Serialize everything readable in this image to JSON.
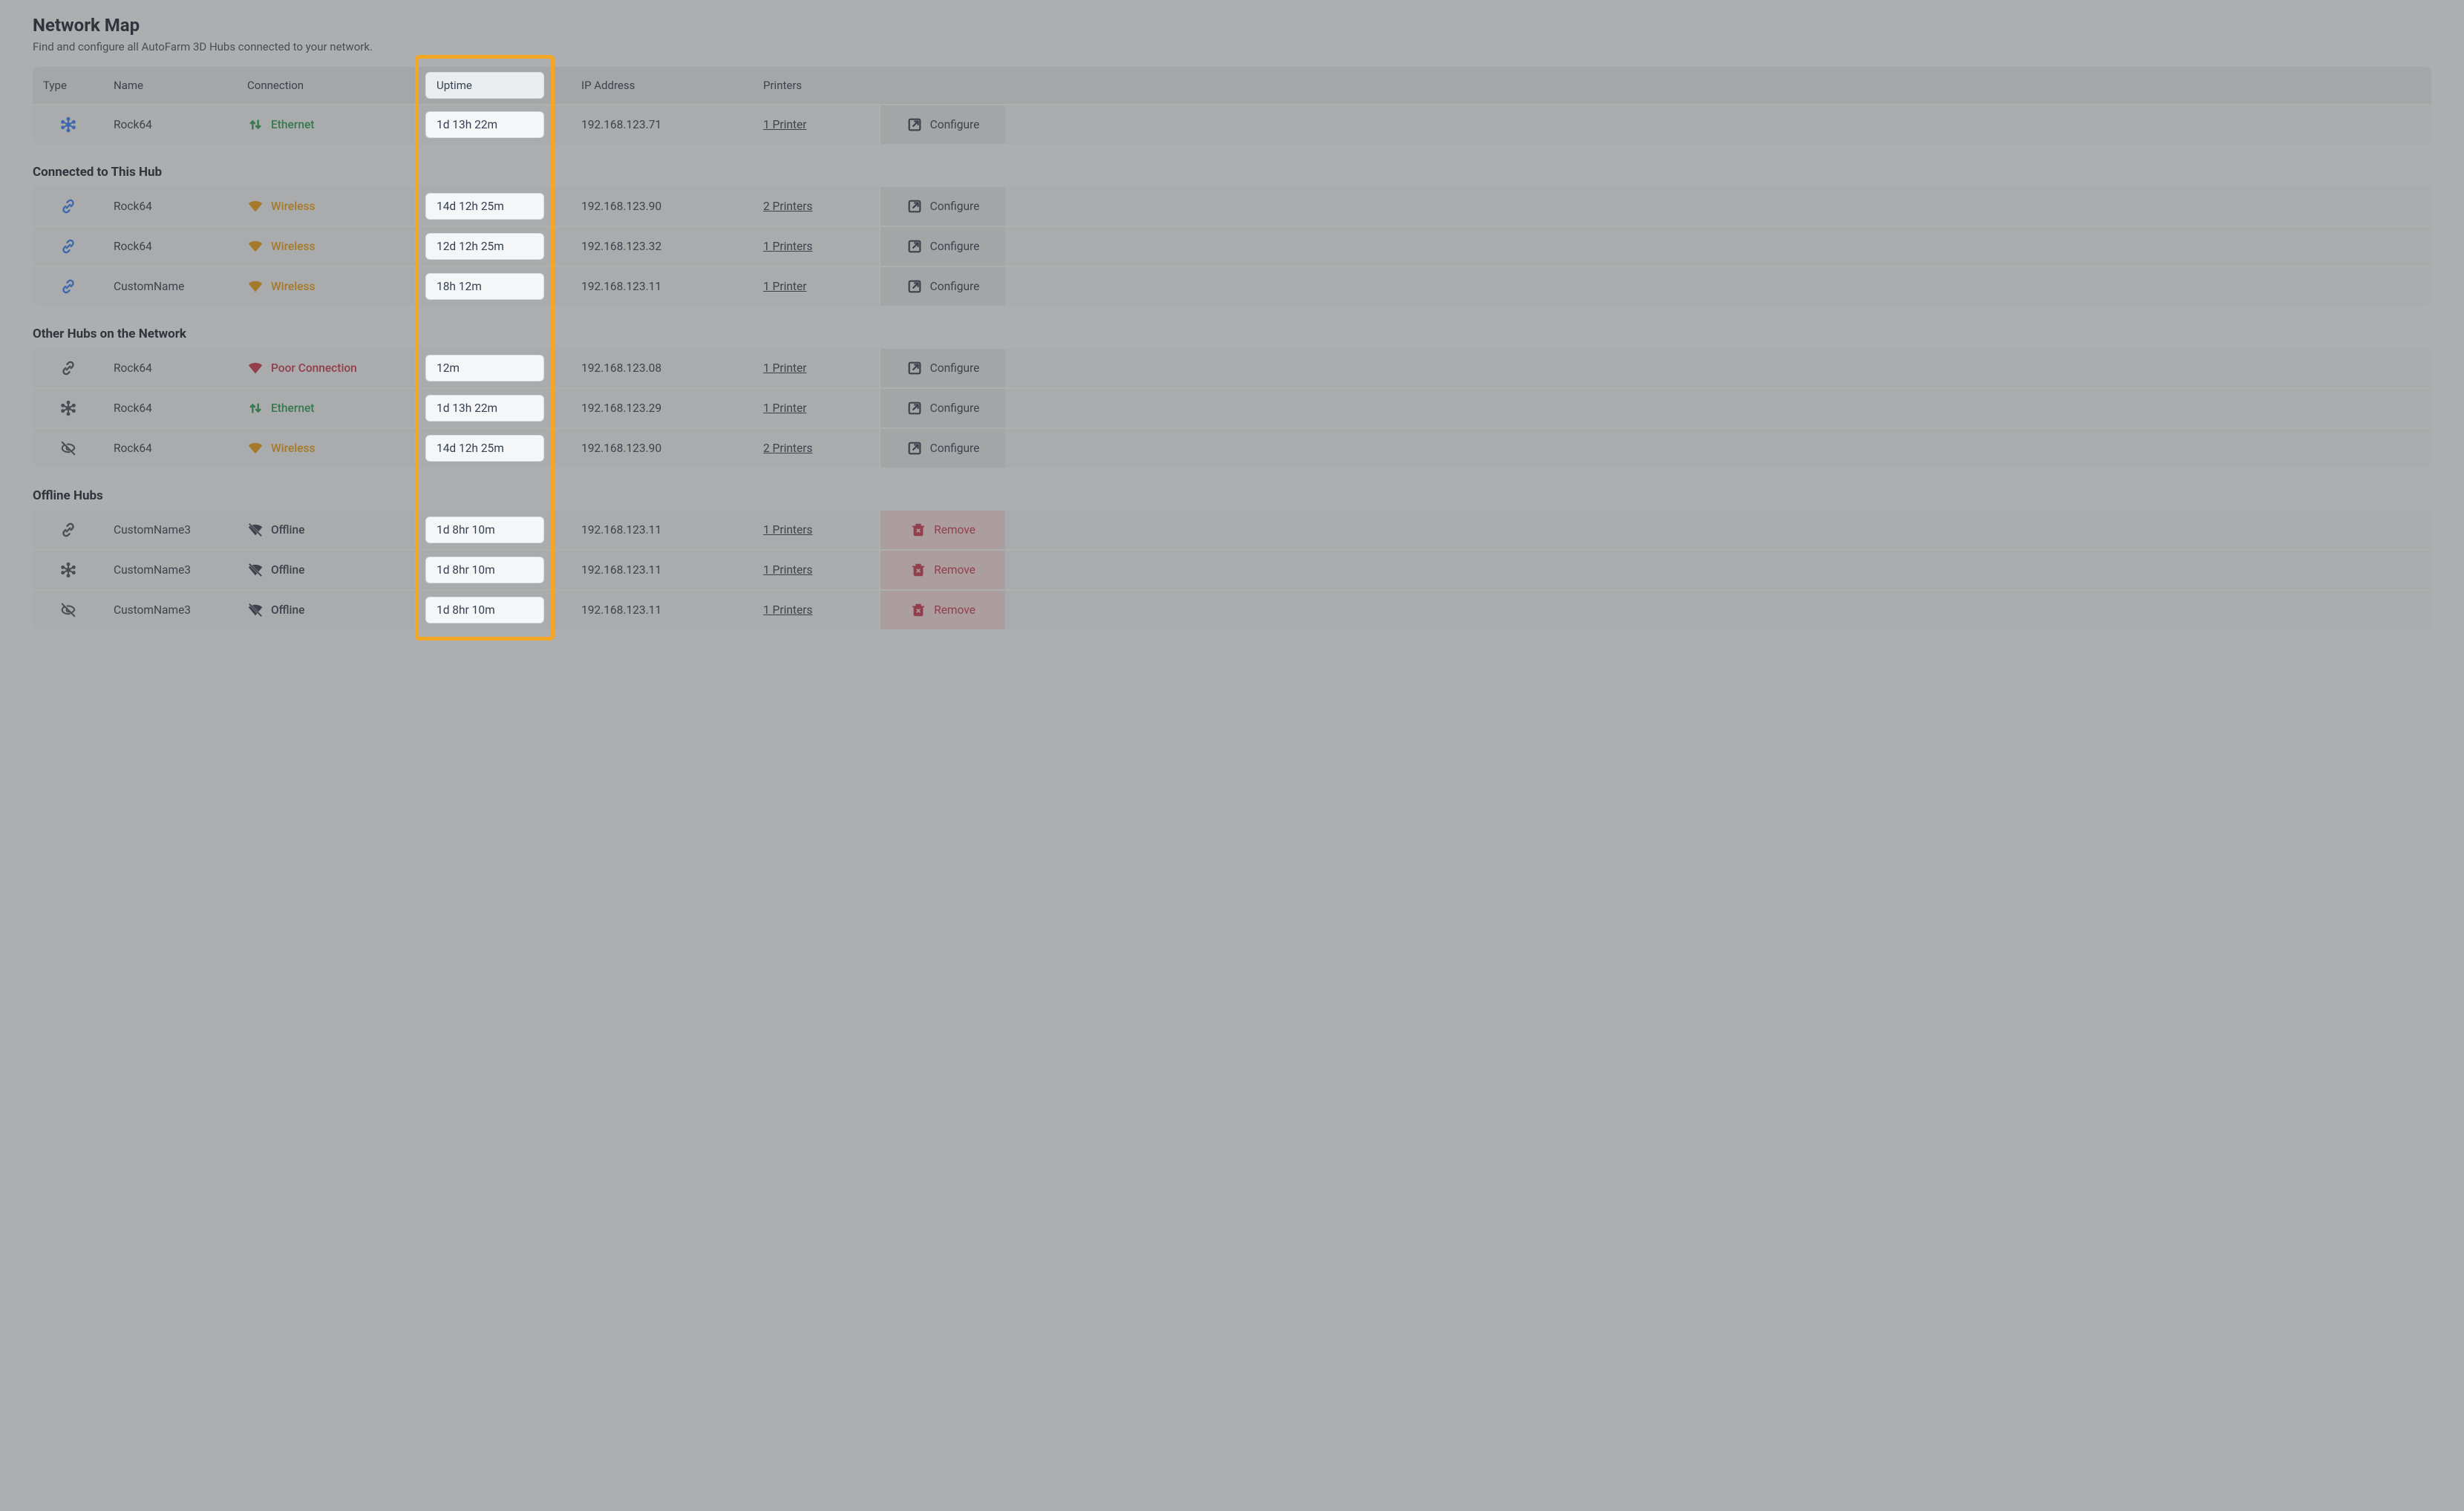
{
  "page": {
    "title": "Network Map",
    "subtitle": "Find and configure all AutoFarm 3D Hubs connected to your network."
  },
  "columns": {
    "type": "Type",
    "name": "Name",
    "connection": "Connection",
    "uptime": "Uptime",
    "ip": "IP Address",
    "printers": "Printers"
  },
  "actions": {
    "configure": "Configure",
    "remove": "Remove"
  },
  "sections": {
    "connected": "Connected to This Hub",
    "other": "Other Hubs on the Network",
    "offline": "Offline Hubs"
  },
  "connection_labels": {
    "ethernet": "Ethernet",
    "wireless": "Wireless",
    "poor": "Poor Connection",
    "offline": "Offline"
  },
  "colors": {
    "ethernet": "#2f9e56",
    "wireless": "#e8a117",
    "poor": "#ca3a52",
    "offline": "#374151",
    "type_icon": "#3b82f6",
    "type_icon_gray": "#4b5563",
    "highlight_border": "#f5a623",
    "overlay": "rgba(70,70,70,0.42)",
    "remove_bg": "#f7dde1",
    "remove_fg": "#ca3a52",
    "action_bg": "#e8ebee",
    "header_bg": "#e8ecef",
    "row_bg": "#f3f4f6"
  },
  "this_hub": {
    "type_icon": "hub",
    "name": "Rock64",
    "connection": "ethernet",
    "uptime": "1d 13h 22m",
    "ip": "192.168.123.71",
    "printers": "1 Printer",
    "action": "configure"
  },
  "connected_hubs": [
    {
      "type_icon": "link",
      "name": "Rock64",
      "connection": "wireless",
      "uptime": "14d 12h 25m",
      "ip": "192.168.123.90",
      "printers": "2 Printers",
      "action": "configure"
    },
    {
      "type_icon": "link",
      "name": "Rock64",
      "connection": "wireless",
      "uptime": "12d 12h 25m",
      "ip": "192.168.123.32",
      "printers": "1 Printers",
      "action": "configure"
    },
    {
      "type_icon": "link",
      "name": "CustomName",
      "connection": "wireless",
      "uptime": "18h 12m",
      "ip": "192.168.123.11",
      "printers": "1 Printer",
      "action": "configure"
    }
  ],
  "other_hubs": [
    {
      "type_icon": "link",
      "name": "Rock64",
      "connection": "poor",
      "uptime": "12m",
      "ip": "192.168.123.08",
      "printers": "1 Printer",
      "action": "configure"
    },
    {
      "type_icon": "hub",
      "name": "Rock64",
      "connection": "ethernet",
      "uptime": "1d 13h 22m",
      "ip": "192.168.123.29",
      "printers": "1 Printer",
      "action": "configure"
    },
    {
      "type_icon": "hidden",
      "name": "Rock64",
      "connection": "wireless",
      "uptime": "14d 12h 25m",
      "ip": "192.168.123.90",
      "printers": "2 Printers",
      "action": "configure"
    }
  ],
  "offline_hubs": [
    {
      "type_icon": "link",
      "name": "CustomName3",
      "connection": "offline",
      "uptime": "1d 8hr 10m",
      "ip": "192.168.123.11",
      "printers": "1 Printers",
      "action": "remove"
    },
    {
      "type_icon": "hub",
      "name": "CustomName3",
      "connection": "offline",
      "uptime": "1d 8hr 10m",
      "ip": "192.168.123.11",
      "printers": "1 Printers",
      "action": "remove"
    },
    {
      "type_icon": "hidden",
      "name": "CustomName3",
      "connection": "offline",
      "uptime": "1d 8hr 10m",
      "ip": "192.168.123.11",
      "printers": "1 Printers",
      "action": "remove"
    }
  ],
  "highlight": {
    "column": "uptime"
  }
}
